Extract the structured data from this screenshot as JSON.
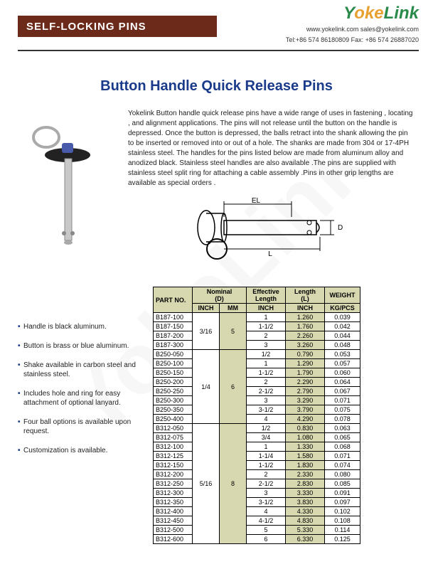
{
  "header": {
    "title": "SELF-LOCKING PINS",
    "logo_y": "Y",
    "logo_oke": "oke",
    "logo_link": "Link",
    "contact1": "www.yokelink.com sales@yokelink.com",
    "contact2": "Tel:+86 574 86180809 Fax: +86 574 26887020"
  },
  "main_title": "Button Handle Quick Release Pins",
  "description": "Yokelink Button handle quick release pins have a wide range of uses in fastening , locating , and alignment applications. The pins will not release until the button on the handle is depressed. Once the button is depressed, the balls retract into the shank allowing the pin to be inserted or removed into or out of a hole. The shanks are made from 304 or 17-4PH stainless steel. The handles for the pins listed below are made from aluminum alloy and anodized black. Stainless steel handles are also available .The pins are supplied with stainless steel split ring for attaching a cable assembly .Pins in other grip lengths are available as special  orders .",
  "bullets": [
    "Handle is black aluminum.",
    "Button is brass or blue aluminum.",
    "Shake available in carbon steel and stainless steel.",
    "Includes hole and ring for easy attachment of optional lanyard.",
    "Four ball options is available upon request.",
    "Customization is available."
  ],
  "diagram_labels": {
    "el": "EL",
    "d": "D",
    "l": "L"
  },
  "table": {
    "h_partno": "PART NO.",
    "h_nominal": "Nominal\n(D)",
    "h_el": "Effective\nLength",
    "h_len": "Length\n(L)",
    "h_wt": "WEIGHT",
    "h_inch": "INCH",
    "h_mm": "MM",
    "h_kgpcs": "KG/PCS",
    "groups": [
      {
        "nom_inch": "3/16",
        "nom_mm": "5",
        "rows": [
          {
            "pn": "B187-100",
            "el": "1",
            "l": "1.260",
            "wt": "0.039"
          },
          {
            "pn": "B187-150",
            "el": "1-1/2",
            "l": "1.760",
            "wt": "0.042"
          },
          {
            "pn": "B187-200",
            "el": "2",
            "l": "2.260",
            "wt": "0.044"
          },
          {
            "pn": "B187-300",
            "el": "3",
            "l": "3.260",
            "wt": "0.048"
          }
        ]
      },
      {
        "nom_inch": "1/4",
        "nom_mm": "6",
        "rows": [
          {
            "pn": "B250-050",
            "el": "1/2",
            "l": "0.790",
            "wt": "0.053"
          },
          {
            "pn": "B250-100",
            "el": "1",
            "l": "1.290",
            "wt": "0.057"
          },
          {
            "pn": "B250-150",
            "el": "1-1/2",
            "l": "1.790",
            "wt": "0.060"
          },
          {
            "pn": "B250-200",
            "el": "2",
            "l": "2.290",
            "wt": "0.064"
          },
          {
            "pn": "B250-250",
            "el": "2-1/2",
            "l": "2.790",
            "wt": "0.067"
          },
          {
            "pn": "B250-300",
            "el": "3",
            "l": "3.290",
            "wt": "0.071"
          },
          {
            "pn": "B250-350",
            "el": "3-1/2",
            "l": "3.790",
            "wt": "0.075"
          },
          {
            "pn": "B250-400",
            "el": "4",
            "l": "4.290",
            "wt": "0.078"
          }
        ]
      },
      {
        "nom_inch": "5/16",
        "nom_mm": "8",
        "rows": [
          {
            "pn": "B312-050",
            "el": "1/2",
            "l": "0.830",
            "wt": "0.063"
          },
          {
            "pn": "B312-075",
            "el": "3/4",
            "l": "1.080",
            "wt": "0.065"
          },
          {
            "pn": "B312-100",
            "el": "1",
            "l": "1.330",
            "wt": "0.068"
          },
          {
            "pn": "B312-125",
            "el": "1-1/4",
            "l": "1.580",
            "wt": "0.071"
          },
          {
            "pn": "B312-150",
            "el": "1-1/2",
            "l": "1.830",
            "wt": "0.074"
          },
          {
            "pn": "B312-200",
            "el": "2",
            "l": "2.330",
            "wt": "0.080"
          },
          {
            "pn": "B312-250",
            "el": "2-1/2",
            "l": "2.830",
            "wt": "0.085"
          },
          {
            "pn": "B312-300",
            "el": "3",
            "l": "3.330",
            "wt": "0.091"
          },
          {
            "pn": "B312-350",
            "el": "3-1/2",
            "l": "3.830",
            "wt": "0.097"
          },
          {
            "pn": "B312-400",
            "el": "4",
            "l": "4.330",
            "wt": "0.102"
          },
          {
            "pn": "B312-450",
            "el": "4-1/2",
            "l": "4.830",
            "wt": "0.108"
          },
          {
            "pn": "B312-500",
            "el": "5",
            "l": "5.330",
            "wt": "0.114"
          },
          {
            "pn": "B312-600",
            "el": "6",
            "l": "6.330",
            "wt": "0.125"
          }
        ]
      }
    ]
  },
  "watermark": "YokeLink",
  "colors": {
    "title_bar_bg": "#6b2a1a",
    "title_color": "#1a3a8a",
    "highlight_bg": "#d8d8b0"
  }
}
